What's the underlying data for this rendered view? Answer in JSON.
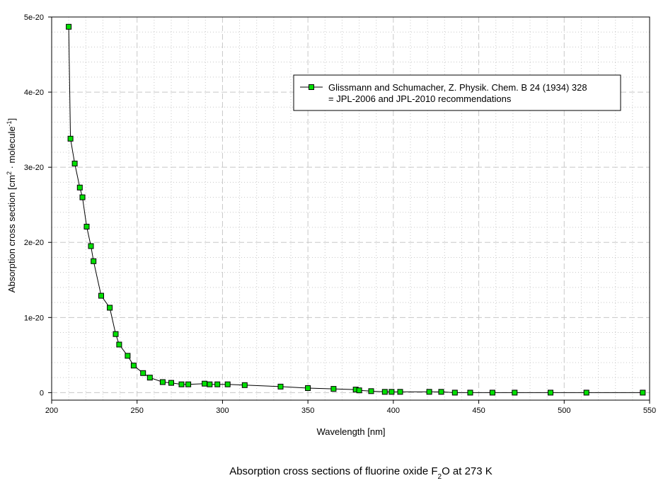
{
  "chart_data": {
    "type": "scatter",
    "xlabel": "Wavelength [nm]",
    "ylabel_parts": {
      "prefix": "Absorption cross section [cm",
      "sup1": "2",
      "middle": " · molecule",
      "sup2": "-1",
      "suffix": "]"
    },
    "caption_parts": {
      "prefix": "Absorption cross sections of fluorine oxide F",
      "sub": "2",
      "suffix": "O at 273 K"
    },
    "xlim": [
      200,
      550
    ],
    "ylim": [
      -1e-21,
      5e-20
    ],
    "x_ticks": [
      {
        "value": 200,
        "label": "200"
      },
      {
        "value": 250,
        "label": "250"
      },
      {
        "value": 300,
        "label": "300"
      },
      {
        "value": 350,
        "label": "350"
      },
      {
        "value": 400,
        "label": "400"
      },
      {
        "value": 450,
        "label": "450"
      },
      {
        "value": 500,
        "label": "500"
      },
      {
        "value": 550,
        "label": "550"
      }
    ],
    "y_ticks": [
      {
        "value": 0,
        "label": "0"
      },
      {
        "value": 1e-20,
        "label": "1e-20"
      },
      {
        "value": 2e-20,
        "label": "2e-20"
      },
      {
        "value": 3e-20,
        "label": "3e-20"
      },
      {
        "value": 4e-20,
        "label": "4e-20"
      },
      {
        "value": 5e-20,
        "label": "5e-20"
      }
    ],
    "grid": true,
    "legend_placement": "top-right",
    "colors": {
      "marker": "#00e000",
      "line": "#000000",
      "grid": "#c8c8c8"
    },
    "series": [
      {
        "name_lines": [
          "Glissmann and Schumacher, Z. Physik. Chem. B 24 (1934) 328",
          "= JPL-2006 and JPL-2010 recommendations"
        ],
        "x": [
          210,
          211,
          213.5,
          216.5,
          218,
          220.5,
          223,
          224.5,
          229,
          234,
          237.5,
          239.5,
          244.5,
          248,
          253.5,
          257.5,
          265,
          270,
          276,
          280,
          289.5,
          292.5,
          297,
          303,
          313,
          334,
          350,
          365,
          378,
          380,
          387,
          395,
          399,
          404,
          421,
          428,
          436,
          445,
          458,
          471,
          492,
          513,
          546
        ],
        "y": [
          4.87e-20,
          3.38e-20,
          3.05e-20,
          2.73e-20,
          2.6e-20,
          2.21e-20,
          1.95e-20,
          1.75e-20,
          1.29e-20,
          1.13e-20,
          7.8e-21,
          6.4e-21,
          4.9e-21,
          3.6e-21,
          2.6e-21,
          2e-21,
          1.4e-21,
          1.3e-21,
          1.1e-21,
          1.1e-21,
          1.2e-21,
          1.1e-21,
          1.1e-21,
          1.1e-21,
          1e-21,
          8e-22,
          6e-22,
          5e-22,
          4e-22,
          3e-22,
          2e-22,
          1e-22,
          1e-22,
          1e-22,
          1e-22,
          1e-22,
          0,
          0,
          0,
          0,
          0,
          0,
          0
        ]
      }
    ]
  }
}
